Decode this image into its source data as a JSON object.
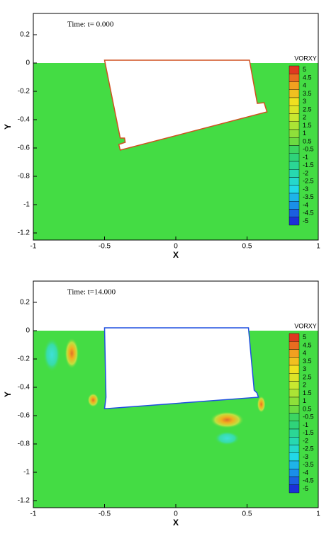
{
  "chart_data": [
    {
      "type": "contour",
      "annotation": "Time: t= 0.000",
      "x_label": "X",
      "y_label": "Y",
      "xlim": [
        -1,
        1
      ],
      "ylim": [
        -1.25,
        0.35
      ],
      "xticks": [
        -1,
        -0.5,
        0,
        0.5,
        1
      ],
      "yticks": [
        -1.2,
        -1,
        -0.8,
        -0.6,
        -0.4,
        -0.2,
        0,
        0.2
      ],
      "colorbar_label": "VORXY",
      "levels": [
        5,
        4.5,
        4,
        3.5,
        3,
        2.5,
        2,
        1.5,
        1,
        0.5,
        -0.5,
        -1,
        -1.5,
        -2,
        -2.5,
        -3,
        -3.5,
        -4,
        -4.5,
        -5
      ]
    },
    {
      "type": "contour",
      "annotation": "Time: t=14.000",
      "x_label": "X",
      "y_label": "Y",
      "xlim": [
        -1,
        1
      ],
      "ylim": [
        -1.25,
        0.35
      ],
      "xticks": [
        -1,
        -0.5,
        0,
        0.5,
        1
      ],
      "yticks": [
        -1.2,
        -1,
        -0.8,
        -0.6,
        -0.4,
        -0.2,
        0,
        0.2
      ],
      "colorbar_label": "VORXY",
      "levels": [
        5,
        4.5,
        4,
        3.5,
        3,
        2.5,
        2,
        1.5,
        1,
        0.5,
        -0.5,
        -1,
        -1.5,
        -2,
        -2.5,
        -3,
        -3.5,
        -4,
        -4.5,
        -5
      ]
    }
  ]
}
